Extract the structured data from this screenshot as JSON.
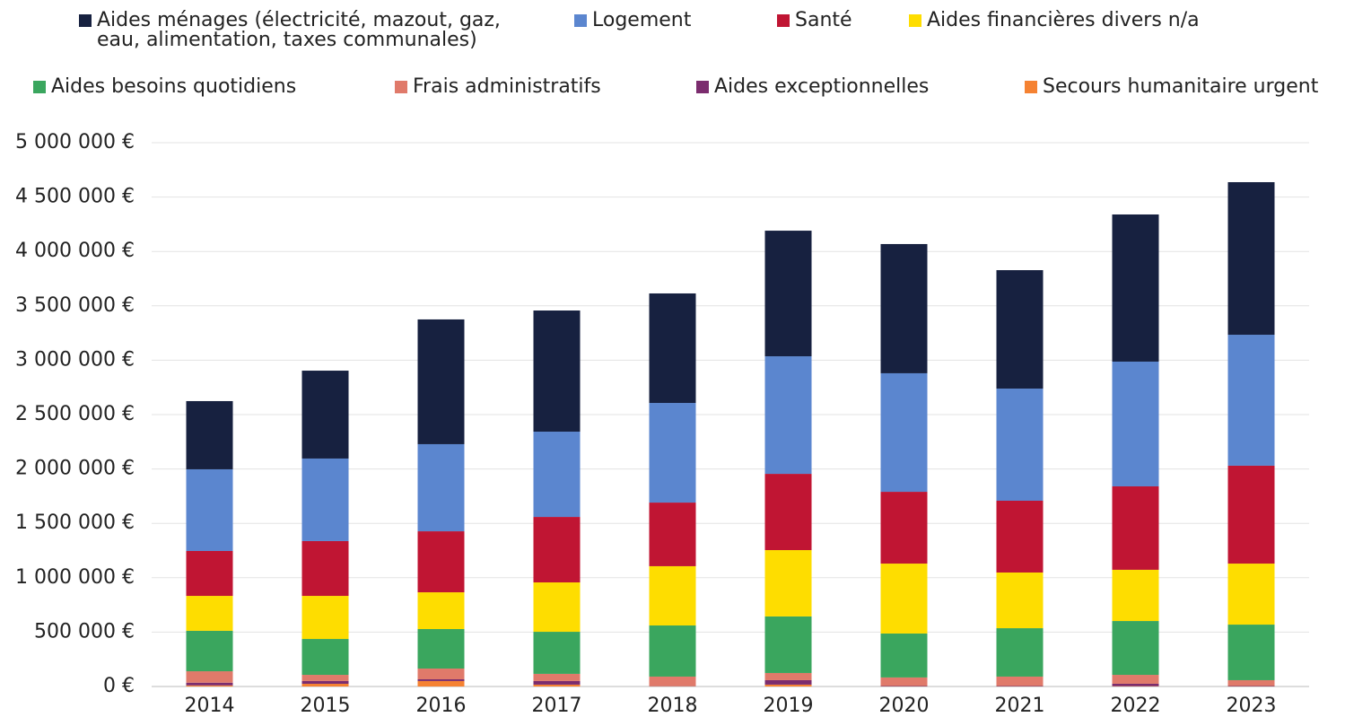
{
  "chart_data": {
    "type": "stacked_bar",
    "categories": [
      "2014",
      "2015",
      "2016",
      "2017",
      "2018",
      "2019",
      "2020",
      "2021",
      "2022",
      "2023"
    ],
    "series": [
      {
        "name": "Aides ménages (électricité, mazout, gaz, eau, alimentation, taxes communales)",
        "color": "#172140",
        "values": [
          627000,
          808000,
          1147000,
          1114000,
          1007000,
          1155000,
          1188000,
          1089000,
          1353000,
          1403000
        ]
      },
      {
        "name": "Logement",
        "color": "#5b86cf",
        "values": [
          751000,
          759000,
          801000,
          784000,
          916000,
          1081000,
          1090000,
          1031000,
          1147000,
          1204000
        ]
      },
      {
        "name": "Santé",
        "color": "#c01533",
        "values": [
          413000,
          504000,
          561000,
          602000,
          585000,
          701000,
          660000,
          660000,
          767000,
          900000
        ]
      },
      {
        "name": "Aides financières divers n/a",
        "color": "#fedd00",
        "values": [
          321000,
          396000,
          338000,
          454000,
          545000,
          610000,
          643000,
          512000,
          471000,
          561000
        ]
      },
      {
        "name": "Aides besoins quotidiens",
        "color": "#3aa65e",
        "values": [
          372000,
          330000,
          363000,
          387000,
          470000,
          520000,
          404000,
          445000,
          495000,
          511000
        ]
      },
      {
        "name": "Frais administratifs",
        "color": "#e07a6a",
        "values": [
          105000,
          57000,
          99000,
          66000,
          85000,
          66000,
          75000,
          83000,
          82000,
          50000
        ]
      },
      {
        "name": "Aides exceptionnelles",
        "color": "#7b2c6e",
        "values": [
          25000,
          25000,
          16000,
          33000,
          3000,
          41000,
          5000,
          5000,
          22000,
          5000
        ]
      },
      {
        "name": "Secours humanitaire urgent",
        "color": "#f58232",
        "values": [
          10000,
          25000,
          50000,
          17000,
          3000,
          17000,
          3000,
          3000,
          3000,
          3000
        ]
      }
    ],
    "ylim": [
      0,
      5000000
    ],
    "yticks": [
      {
        "value": 0,
        "label": "0 €"
      },
      {
        "value": 500000,
        "label": "500 000 €"
      },
      {
        "value": 1000000,
        "label": "1 000 000 €"
      },
      {
        "value": 1500000,
        "label": "1 500 000 €"
      },
      {
        "value": 2000000,
        "label": "2 000 000 €"
      },
      {
        "value": 2500000,
        "label": "2 500 000 €"
      },
      {
        "value": 3000000,
        "label": "3 000 000 €"
      },
      {
        "value": 3500000,
        "label": "3 500 000 €"
      },
      {
        "value": 4000000,
        "label": "4 000 000 €"
      },
      {
        "value": 4500000,
        "label": "4 500 000 €"
      },
      {
        "value": 5000000,
        "label": "5 000 000 €"
      }
    ],
    "grid": true
  }
}
